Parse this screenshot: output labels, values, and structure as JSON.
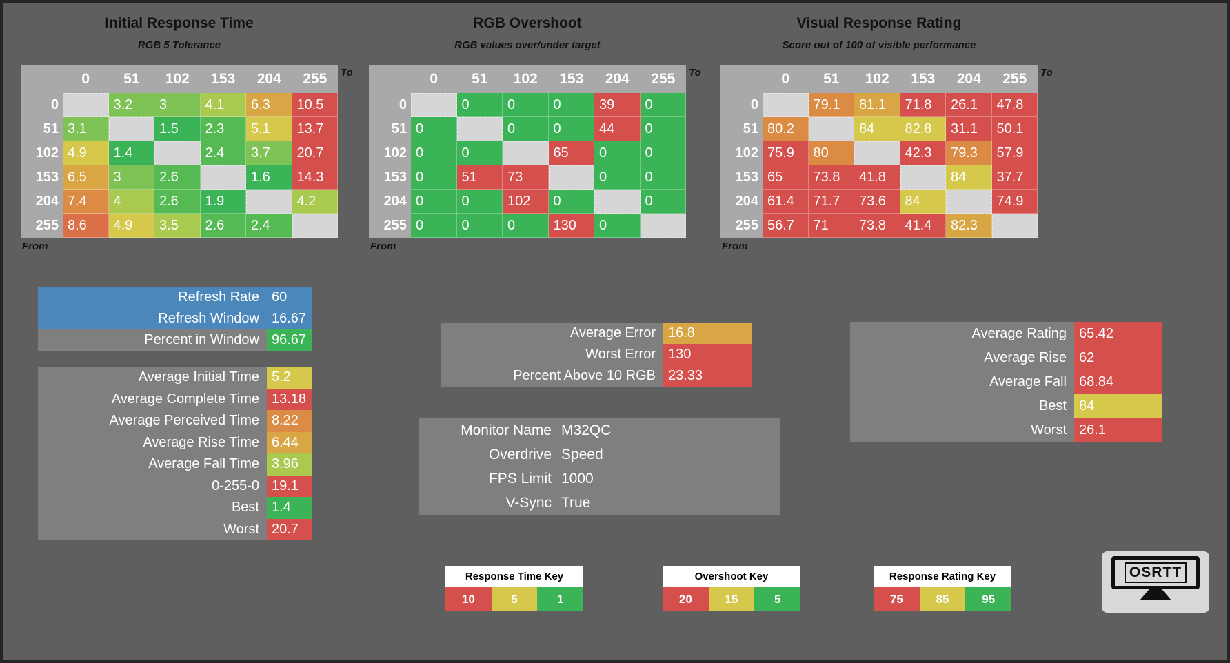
{
  "background": "#5f5f5f",
  "palette": {
    "G": "#3bb457",
    "G2": "#55ba53",
    "G3": "#7fc255",
    "YG": "#a9c94f",
    "Y": "#d5c84b",
    "YO": "#d8a644",
    "O": "#dc8b45",
    "OR": "#db6f48",
    "R": "#d5504c",
    "X": "#d6d6d6",
    "BLUE": "#4b87ba",
    "PANEL": "#7f7f7f",
    "HEADER": "#a9a9a9"
  },
  "axis": {
    "cols": [
      "0",
      "51",
      "102",
      "153",
      "204",
      "255"
    ],
    "to": "To",
    "from": "From"
  },
  "tables": [
    {
      "title": "Initial Response Time",
      "subtitle": "RGB 5 Tolerance",
      "rows": [
        {
          "h": "0",
          "cells": [
            [
              "",
              "X"
            ],
            [
              "3.2",
              "G3"
            ],
            [
              "3",
              "G3"
            ],
            [
              "4.1",
              "YG"
            ],
            [
              "6.3",
              "YO"
            ],
            [
              "10.5",
              "R"
            ]
          ]
        },
        {
          "h": "51",
          "cells": [
            [
              "3.1",
              "G3"
            ],
            [
              "",
              "X"
            ],
            [
              "1.5",
              "G"
            ],
            [
              "2.3",
              "G2"
            ],
            [
              "5.1",
              "Y"
            ],
            [
              "13.7",
              "R"
            ]
          ]
        },
        {
          "h": "102",
          "cells": [
            [
              "4.9",
              "Y"
            ],
            [
              "1.4",
              "G"
            ],
            [
              "",
              "X"
            ],
            [
              "2.4",
              "G2"
            ],
            [
              "3.7",
              "G3"
            ],
            [
              "20.7",
              "R"
            ]
          ]
        },
        {
          "h": "153",
          "cells": [
            [
              "6.5",
              "YO"
            ],
            [
              "3",
              "G3"
            ],
            [
              "2.6",
              "G2"
            ],
            [
              "",
              "X"
            ],
            [
              "1.6",
              "G"
            ],
            [
              "14.3",
              "R"
            ]
          ]
        },
        {
          "h": "204",
          "cells": [
            [
              "7.4",
              "O"
            ],
            [
              "4",
              "YG"
            ],
            [
              "2.6",
              "G2"
            ],
            [
              "1.9",
              "G"
            ],
            [
              "",
              "X"
            ],
            [
              "4.2",
              "YG"
            ]
          ]
        },
        {
          "h": "255",
          "cells": [
            [
              "8.6",
              "OR"
            ],
            [
              "4.9",
              "Y"
            ],
            [
              "3.5",
              "YG"
            ],
            [
              "2.6",
              "G2"
            ],
            [
              "2.4",
              "G2"
            ],
            [
              "",
              "X"
            ]
          ]
        }
      ]
    },
    {
      "title": "RGB Overshoot",
      "subtitle": "RGB values over/under target",
      "rows": [
        {
          "h": "0",
          "cells": [
            [
              "",
              "X"
            ],
            [
              "0",
              "G"
            ],
            [
              "0",
              "G"
            ],
            [
              "0",
              "G"
            ],
            [
              "39",
              "R"
            ],
            [
              "0",
              "G"
            ]
          ]
        },
        {
          "h": "51",
          "cells": [
            [
              "0",
              "G"
            ],
            [
              "",
              "X"
            ],
            [
              "0",
              "G"
            ],
            [
              "0",
              "G"
            ],
            [
              "44",
              "R"
            ],
            [
              "0",
              "G"
            ]
          ]
        },
        {
          "h": "102",
          "cells": [
            [
              "0",
              "G"
            ],
            [
              "0",
              "G"
            ],
            [
              "",
              "X"
            ],
            [
              "65",
              "R"
            ],
            [
              "0",
              "G"
            ],
            [
              "0",
              "G"
            ]
          ]
        },
        {
          "h": "153",
          "cells": [
            [
              "0",
              "G"
            ],
            [
              "51",
              "R"
            ],
            [
              "73",
              "R"
            ],
            [
              "",
              "X"
            ],
            [
              "0",
              "G"
            ],
            [
              "0",
              "G"
            ]
          ]
        },
        {
          "h": "204",
          "cells": [
            [
              "0",
              "G"
            ],
            [
              "0",
              "G"
            ],
            [
              "102",
              "R"
            ],
            [
              "0",
              "G"
            ],
            [
              "",
              "X"
            ],
            [
              "0",
              "G"
            ]
          ]
        },
        {
          "h": "255",
          "cells": [
            [
              "0",
              "G"
            ],
            [
              "0",
              "G"
            ],
            [
              "0",
              "G"
            ],
            [
              "130",
              "R"
            ],
            [
              "0",
              "G"
            ],
            [
              "",
              "X"
            ]
          ]
        }
      ]
    },
    {
      "title": "Visual Response Rating",
      "subtitle": "Score out of 100 of visible performance",
      "rows": [
        {
          "h": "0",
          "cells": [
            [
              "",
              "X"
            ],
            [
              "79.1",
              "O"
            ],
            [
              "81.1",
              "YO"
            ],
            [
              "71.8",
              "R"
            ],
            [
              "26.1",
              "R"
            ],
            [
              "47.8",
              "R"
            ]
          ]
        },
        {
          "h": "51",
          "cells": [
            [
              "80.2",
              "O"
            ],
            [
              "",
              "X"
            ],
            [
              "84",
              "Y"
            ],
            [
              "82.8",
              "Y"
            ],
            [
              "31.1",
              "R"
            ],
            [
              "50.1",
              "R"
            ]
          ]
        },
        {
          "h": "102",
          "cells": [
            [
              "75.9",
              "R"
            ],
            [
              "80",
              "O"
            ],
            [
              "",
              "X"
            ],
            [
              "42.3",
              "R"
            ],
            [
              "79.3",
              "O"
            ],
            [
              "57.9",
              "R"
            ]
          ]
        },
        {
          "h": "153",
          "cells": [
            [
              "65",
              "R"
            ],
            [
              "73.8",
              "R"
            ],
            [
              "41.8",
              "R"
            ],
            [
              "",
              "X"
            ],
            [
              "84",
              "Y"
            ],
            [
              "37.7",
              "R"
            ]
          ]
        },
        {
          "h": "204",
          "cells": [
            [
              "61.4",
              "R"
            ],
            [
              "71.7",
              "R"
            ],
            [
              "73.6",
              "R"
            ],
            [
              "84",
              "Y"
            ],
            [
              "",
              "X"
            ],
            [
              "74.9",
              "R"
            ]
          ]
        },
        {
          "h": "255",
          "cells": [
            [
              "56.7",
              "R"
            ],
            [
              "71",
              "R"
            ],
            [
              "73.8",
              "R"
            ],
            [
              "41.4",
              "R"
            ],
            [
              "82.3",
              "YO"
            ],
            [
              "",
              "X"
            ]
          ]
        }
      ]
    }
  ],
  "panels": {
    "refresh": {
      "rows": [
        {
          "label": "Refresh Rate",
          "value": "60",
          "row_bg": "BLUE"
        },
        {
          "label": "Refresh Window",
          "value": "16.67",
          "row_bg": "BLUE"
        },
        {
          "label": "Percent in Window",
          "value": "96.67",
          "value_bg": "G"
        }
      ]
    },
    "times": {
      "rows": [
        {
          "label": "Average Initial Time",
          "value": "5.2",
          "value_bg": "Y"
        },
        {
          "label": "Average Complete Time",
          "value": "13.18",
          "value_bg": "R"
        },
        {
          "label": "Average Perceived Time",
          "value": "8.22",
          "value_bg": "O"
        },
        {
          "label": "Average Rise Time",
          "value": "6.44",
          "value_bg": "YO"
        },
        {
          "label": "Average Fall Time",
          "value": "3.96",
          "value_bg": "YG"
        },
        {
          "label": "0-255-0",
          "value": "19.1",
          "value_bg": "R"
        },
        {
          "label": "Best",
          "value": "1.4",
          "value_bg": "G"
        },
        {
          "label": "Worst",
          "value": "20.7",
          "value_bg": "R"
        }
      ]
    },
    "error": {
      "rows": [
        {
          "label": "Average Error",
          "value": "16.8",
          "value_bg": "YO"
        },
        {
          "label": "Worst Error",
          "value": "130",
          "value_bg": "R"
        },
        {
          "label": "Percent Above 10 RGB",
          "value": "23.33",
          "value_bg": "R"
        }
      ]
    },
    "monitor": {
      "rows": [
        {
          "label": "Monitor Name",
          "value": "M32QC"
        },
        {
          "label": "Overdrive",
          "value": "Speed"
        },
        {
          "label": "FPS Limit",
          "value": "1000"
        },
        {
          "label": "V-Sync",
          "value": "True"
        }
      ]
    },
    "rating": {
      "rows": [
        {
          "label": "Average Rating",
          "value": "65.42",
          "value_bg": "R"
        },
        {
          "label": "Average Rise",
          "value": "62",
          "value_bg": "R"
        },
        {
          "label": "Average Fall",
          "value": "68.84",
          "value_bg": "R"
        },
        {
          "label": "Best",
          "value": "84",
          "value_bg": "Y"
        },
        {
          "label": "Worst",
          "value": "26.1",
          "value_bg": "R"
        }
      ]
    }
  },
  "keys": [
    {
      "title": "Response Time Key",
      "cells": [
        [
          "10",
          "R"
        ],
        [
          "5",
          "Y"
        ],
        [
          "1",
          "G"
        ]
      ]
    },
    {
      "title": "Overshoot Key",
      "cells": [
        [
          "20",
          "R"
        ],
        [
          "15",
          "Y"
        ],
        [
          "5",
          "G"
        ]
      ]
    },
    {
      "title": "Response Rating Key",
      "cells": [
        [
          "75",
          "R"
        ],
        [
          "85",
          "Y"
        ],
        [
          "95",
          "G"
        ]
      ]
    }
  ],
  "logo": {
    "text": "OSRTT"
  }
}
